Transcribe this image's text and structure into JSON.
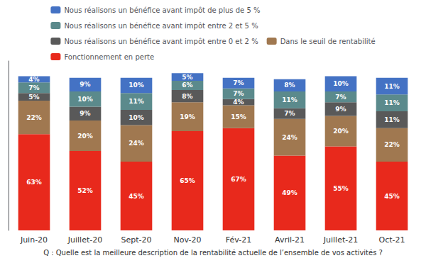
{
  "chart_data": {
    "type": "bar",
    "stacked": true,
    "categories": [
      "Juin-20",
      "Juillet-20",
      "Sept-20",
      "Nov-20",
      "Fév-21",
      "Avril-21",
      "Juillet-21",
      "Oct-21"
    ],
    "series": [
      {
        "name": "Fonctionnement en perte",
        "color": "#e8291c",
        "values": [
          63,
          52,
          45,
          65,
          67,
          49,
          55,
          45
        ],
        "value_labels": [
          "63%",
          "52%",
          "45%",
          "65%",
          "67%",
          "49%",
          "55%",
          "45%"
        ]
      },
      {
        "name": "Dans le seuil de rentabilité",
        "color": "#a07850",
        "values": [
          22,
          20,
          24,
          19,
          15,
          24,
          20,
          22
        ],
        "value_labels": [
          "22%",
          "20%",
          "24%",
          "19%",
          "15%",
          "24%",
          "20%",
          "22%"
        ]
      },
      {
        "name": "Nous réalisons un bénéfice avant impôt entre 0 et 2 %",
        "color": "#595959",
        "values": [
          5,
          9,
          10,
          8,
          4,
          7,
          9,
          11
        ],
        "value_labels": [
          "5%",
          "9%",
          "10%",
          "8%",
          "4%",
          "7%",
          "9%",
          "11%"
        ]
      },
      {
        "name": "Nous réalisons un bénéfice avant impôt entre 2 et 5 %",
        "color": "#5b8a8c",
        "values": [
          7,
          10,
          11,
          6,
          7,
          11,
          7,
          11
        ],
        "value_labels": [
          "7%",
          "10%",
          "11%",
          "6%",
          "7%",
          "11%",
          "7%",
          "11%"
        ]
      },
      {
        "name": "Nous réalisons un bénéfice avant impôt de plus de 5 %",
        "color": "#4472c4",
        "values": [
          4,
          9,
          10,
          5,
          7,
          8,
          10,
          11
        ],
        "value_labels": [
          "4%",
          "9%",
          "10%",
          "5%",
          "7%",
          "8%",
          "10%",
          "11%"
        ]
      }
    ],
    "xlabel": "Q : Quelle est la meilleure description de la rentabilité actuelle de l’ensemble de vos activités ?",
    "ylim": [
      0,
      111
    ],
    "tick_labels": "x",
    "grid": false,
    "data_labels": true,
    "legend": "top"
  }
}
